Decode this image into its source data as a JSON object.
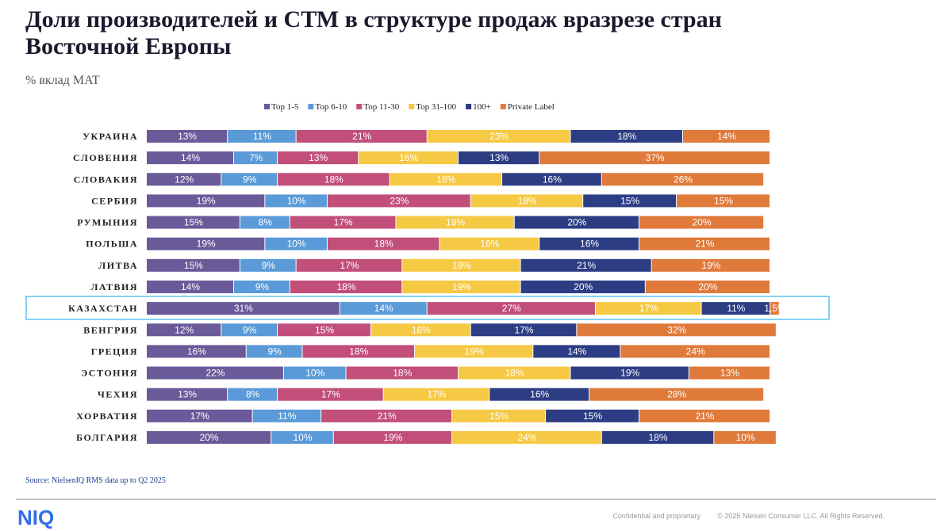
{
  "chart_data": {
    "type": "stacked_bar_horizontal",
    "title": "Доли производителей и СТМ в структуре продаж вразрезе стран",
    "title_line2": "Восточной Европы",
    "subtitle": "% вклад MAT",
    "categories": [
      "УКРАИНА",
      "СЛОВЕНИЯ",
      "СЛОВАКИЯ",
      "СЕРБИЯ",
      "РУМЫНИЯ",
      "ПОЛЬША",
      "ЛИТВА",
      "ЛАТВИЯ",
      "КАЗАХСТАН",
      "ВЕНГРИЯ",
      "ГРЕЦИЯ",
      "ЭСТОНИЯ",
      "ЧЕХИЯ",
      "ХОРВАТИЯ",
      "БОЛГАРИЯ"
    ],
    "xlim": [
      0,
      100
    ],
    "series": [
      {
        "name": "Top 1-5",
        "color": "#6a5a99",
        "values": [
          13,
          14,
          12,
          19,
          15,
          19,
          15,
          14,
          31,
          12,
          16,
          22,
          13,
          17,
          20
        ],
        "value_labels": [
          "13%",
          "14%",
          "12%",
          "19%",
          "15%",
          "19%",
          "15%",
          "14%",
          "31%",
          "12%",
          "16%",
          "22%",
          "13%",
          "17%",
          "20%"
        ]
      },
      {
        "name": "Top 6-10",
        "color": "#5a9ad8",
        "values": [
          11,
          7,
          9,
          10,
          8,
          10,
          9,
          9,
          14,
          9,
          9,
          10,
          8,
          11,
          10
        ],
        "value_labels": [
          "11%",
          "7%",
          "9%",
          "10%",
          "8%",
          "10%",
          "9%",
          "9%",
          "14%",
          "9%",
          "9%",
          "10%",
          "8%",
          "11%",
          "10%"
        ]
      },
      {
        "name": "Top 11-30",
        "color": "#c14f7a",
        "values": [
          21,
          13,
          18,
          23,
          17,
          18,
          17,
          18,
          27,
          15,
          18,
          18,
          17,
          21,
          19
        ],
        "value_labels": [
          "21%",
          "13%",
          "18%",
          "23%",
          "17%",
          "18%",
          "17%",
          "18%",
          "27%",
          "15%",
          "18%",
          "18%",
          "17%",
          "21%",
          "19%"
        ]
      },
      {
        "name": "Top 31-100",
        "color": "#f6c944",
        "values": [
          23,
          16,
          18,
          18,
          19,
          16,
          19,
          19,
          17,
          16,
          19,
          18,
          17,
          15,
          24
        ],
        "value_labels": [
          "23%",
          "16%",
          "18%",
          "18%",
          "19%",
          "16%",
          "19%",
          "19%",
          "17%",
          "16%",
          "19%",
          "18%",
          "17%",
          "15%",
          "24%"
        ]
      },
      {
        "name": "100+",
        "color": "#2c3d84",
        "values": [
          18,
          13,
          16,
          15,
          20,
          16,
          21,
          20,
          11,
          17,
          14,
          19,
          16,
          15,
          18
        ],
        "value_labels": [
          "18%",
          "13%",
          "16%",
          "15%",
          "20%",
          "16%",
          "21%",
          "20%",
          "11%",
          "17%",
          "14%",
          "19%",
          "16%",
          "15%",
          "18%"
        ]
      },
      {
        "name": "Private Label",
        "color": "#e07a3b",
        "values": [
          14,
          37,
          26,
          15,
          20,
          21,
          19,
          20,
          1.5,
          32,
          24,
          13,
          28,
          21,
          10
        ],
        "value_labels": [
          "14%",
          "37%",
          "26%",
          "15%",
          "20%",
          "21%",
          "19%",
          "20%",
          "1,5%",
          "32%",
          "24%",
          "13%",
          "28%",
          "21%",
          "10%"
        ]
      }
    ]
  },
  "source": "Source: NielsenIQ RMS data up to Q2 2025",
  "logo": "NIQ",
  "footer": {
    "confidential": "Confidential and proprietary",
    "copyright": "© 2025 Nielsen Consumer LLC. All Rights Reserved."
  }
}
